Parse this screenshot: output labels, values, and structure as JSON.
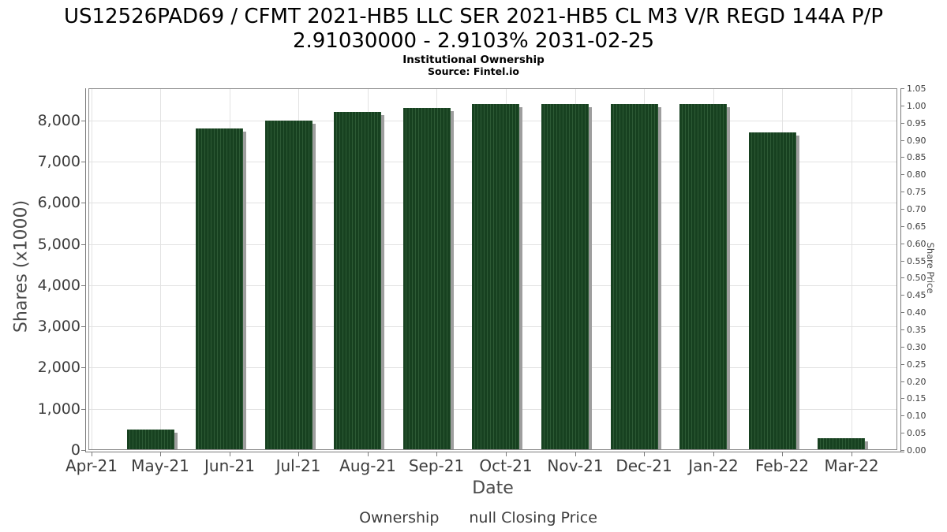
{
  "header": {
    "title_line1": "US12526PAD69 / CFMT 2021-HB5 LLC SER 2021-HB5 CL M3 V/R REGD 144A P/P",
    "title_line2": "2.91030000 - 2.9103% 2031-02-25",
    "subtitle": "Institutional Ownership",
    "source": "Source: Fintel.io"
  },
  "chart_data": {
    "type": "bar",
    "title": "US12526PAD69 / CFMT 2021-HB5 LLC SER 2021-HB5 CL M3 V/R REGD 144A P/P 2.91030000 - 2.9103% 2031-02-25",
    "subtitle": "Institutional Ownership",
    "source": "Source: Fintel.io",
    "categories": [
      "Apr-21",
      "May-21",
      "Jun-21",
      "Jul-21",
      "Aug-21",
      "Sep-21",
      "Oct-21",
      "Nov-21",
      "Dec-21",
      "Jan-22",
      "Feb-22",
      "Mar-22"
    ],
    "series": [
      {
        "name": "Ownership",
        "type": "bar",
        "values": [
          0,
          490,
          7810,
          8000,
          8200,
          8300,
          8400,
          8400,
          8400,
          8400,
          7700,
          290
        ]
      },
      {
        "name": "null Closing Price",
        "type": "line",
        "values": []
      }
    ],
    "xlabel": "Date",
    "ylabel_left": "Shares (x1000)",
    "ylabel_right": "Share Price",
    "ylim_left": [
      0,
      8780
    ],
    "yticks_left": [
      0,
      1000,
      2000,
      3000,
      4000,
      5000,
      6000,
      7000,
      8000
    ],
    "ylim_right": [
      0,
      1.05
    ],
    "ytick_step_right": 0.05,
    "grid": true,
    "legend_position": "bottom"
  },
  "legend": {
    "items": [
      {
        "label": "Ownership",
        "symbol": "square",
        "color": "#1d4725"
      },
      {
        "label": "null Closing Price",
        "symbol": "line",
        "color": "#4d4d4d"
      }
    ]
  },
  "colors": {
    "bar_base": "#174120",
    "bar_stripe": "#2d5a35",
    "bar_shadow": "#9e9e9e",
    "gridline": "#e2e2e2",
    "axis_line": "#7a7a7a",
    "plot_border": "#8a8a8a",
    "tick_text": "#3d3d3d",
    "title_text": "#000000"
  }
}
